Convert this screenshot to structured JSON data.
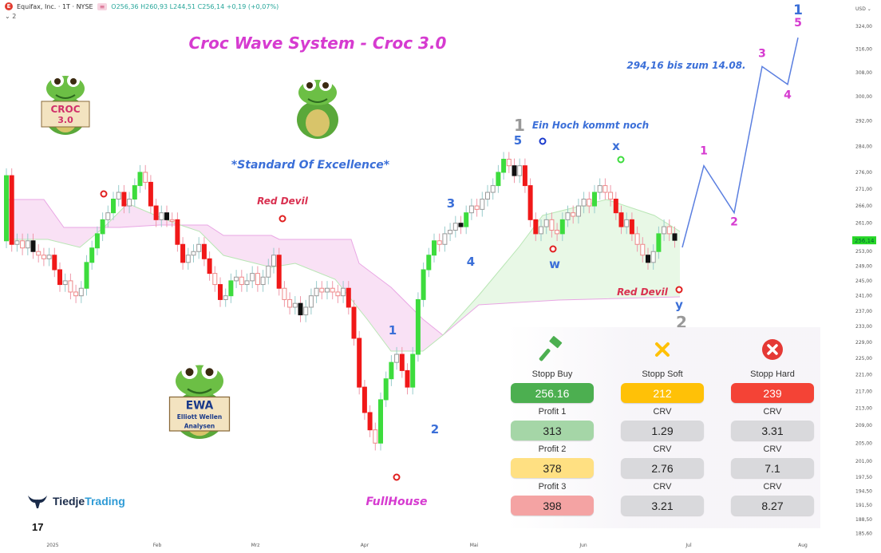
{
  "header": {
    "symbol_title": "Equifax, Inc. · 1T · NYSE",
    "symbol_logo_letter": "E",
    "ohlc_text": "O256,36 H260,93 L244,51 C256,14 +0,19 (+0,07%)",
    "indicator_count": "⌄ 2"
  },
  "currency": "USD ⌄",
  "chart_data": {
    "type": "candlestick",
    "scale": "log",
    "ylim": [
      185.6,
      326
    ],
    "y_tick_labels": [
      "324,00",
      "316,00",
      "308,00",
      "300,00",
      "292,00",
      "284,00",
      "276,00",
      "271,00",
      "266,00",
      "261,00",
      "253,00",
      "249,00",
      "245,00",
      "241,00",
      "237,00",
      "233,00",
      "229,00",
      "225,00",
      "221,00",
      "217,00",
      "213,00",
      "209,00",
      "205,00",
      "201,00",
      "197,50",
      "194,50",
      "191,50",
      "188,50",
      "185,60"
    ],
    "y_tick_values": [
      324,
      316,
      308,
      300,
      292,
      284,
      276,
      271,
      266,
      261,
      253,
      249,
      245,
      241,
      237,
      233,
      229,
      225,
      221,
      217,
      213,
      209,
      205,
      201,
      197.5,
      194.5,
      191.5,
      188.5,
      185.6
    ],
    "x_tick_labels": [
      "2025",
      "Feb",
      "Mrz",
      "Apr",
      "Mai",
      "Jun",
      "Jul",
      "Aug"
    ],
    "last_price": 256.14,
    "last_price_label": "256,14",
    "first_open": 256,
    "closes": [
      275,
      255,
      256,
      254,
      256,
      253,
      252,
      251,
      252,
      248,
      244,
      245,
      242,
      241,
      243,
      250,
      254,
      258,
      262,
      264,
      268,
      270,
      266,
      268,
      272,
      276,
      273,
      266,
      262,
      264,
      262,
      262,
      255,
      250,
      252,
      253,
      255,
      251,
      247,
      244,
      240,
      241,
      245,
      246,
      244,
      245,
      247,
      244,
      246,
      249,
      252,
      243,
      240,
      238,
      239,
      236,
      238,
      241,
      243,
      242,
      243,
      242,
      241,
      243,
      238,
      230,
      218,
      212,
      208,
      205,
      215,
      220,
      224,
      226,
      222,
      218,
      226,
      240,
      248,
      252,
      256,
      255,
      258,
      259,
      261,
      260,
      264,
      266,
      265,
      268,
      270,
      272,
      276,
      280,
      278,
      275,
      278,
      272,
      262,
      258,
      260,
      262,
      259,
      258,
      262,
      264,
      263,
      266,
      268,
      266,
      270,
      272,
      270,
      268,
      264,
      260,
      262,
      258,
      255,
      252,
      250,
      253,
      258,
      260,
      258,
      256.14
    ],
    "projection_wave": [
      {
        "label": "1",
        "price": 278
      },
      {
        "label": "2",
        "price": 264
      },
      {
        "label": "3",
        "price": 310
      },
      {
        "label": "4",
        "price": 304
      },
      {
        "label": "5",
        "price": 320
      }
    ],
    "wave_labels": [
      {
        "text": "1",
        "color": "#3b6fd8"
      },
      {
        "text": "2",
        "color": "#3b6fd8"
      },
      {
        "text": "3",
        "color": "#3b6fd8"
      },
      {
        "text": "4",
        "color": "#3b6fd8"
      },
      {
        "text": "5",
        "color": "#3b6fd8"
      },
      {
        "text": "1",
        "color": "#999999"
      },
      {
        "text": "w",
        "color": "#3b6fd8"
      },
      {
        "text": "x",
        "color": "#3b6fd8"
      },
      {
        "text": "y",
        "color": "#3b6fd8"
      },
      {
        "text": "2",
        "color": "#999999"
      },
      {
        "text": "1",
        "color": "#3b6fd8"
      }
    ],
    "annotations": {
      "title": "Croc Wave System - Croc 3.0",
      "subtitle": "*Standard Of Excellence*",
      "red_devil_1": "Red Devil",
      "red_devil_2": "Red Devil",
      "full_house": "FullHouse",
      "high_note": "Ein Hoch kommt noch",
      "target_note": "294,16 bis zum 14.08."
    },
    "colors": {
      "up": "#3ddc3d",
      "down": "#f01818",
      "neutral": "#111111",
      "cloud_bear": "#f7d9f2",
      "cloud_bull": "#e2f6e0",
      "wave_line": "#5b7fe0",
      "title": "#d63bd0",
      "price_badge": "#27d627"
    }
  },
  "stickers": {
    "croc_sign": "CROC 3.0",
    "ewa_title": "EWA",
    "ewa_sub1": "Elliott Wellen",
    "ewa_sub2": "Analysen"
  },
  "panel": {
    "columns": [
      {
        "icon": "gavel-icon",
        "head": "Stopp Buy",
        "head_value": "256.16",
        "head_color": "#4caf50",
        "rows": [
          {
            "label": "Profit 1",
            "value": "313",
            "color": "#a5d6a7"
          },
          {
            "label": "Profit 2",
            "value": "378",
            "color": "#ffe082"
          },
          {
            "label": "Profit 3",
            "value": "398",
            "color": "#f4a3a3"
          }
        ]
      },
      {
        "icon": "x-icon",
        "head": "Stopp Soft",
        "head_value": "212",
        "head_color": "#ffc107",
        "rows": [
          {
            "label": "CRV",
            "value": "1.29",
            "color": "#d9d9dc"
          },
          {
            "label": "CRV",
            "value": "2.76",
            "color": "#d9d9dc"
          },
          {
            "label": "CRV",
            "value": "3.21",
            "color": "#d9d9dc"
          }
        ]
      },
      {
        "icon": "x-circle-icon",
        "head": "Stopp Hard",
        "head_value": "239",
        "head_color": "#f44336",
        "rows": [
          {
            "label": "CRV",
            "value": "3.31",
            "color": "#d9d9dc"
          },
          {
            "label": "CRV",
            "value": "7.1",
            "color": "#d9d9dc"
          },
          {
            "label": "CRV",
            "value": "8.27",
            "color": "#d9d9dc"
          }
        ]
      }
    ]
  },
  "brand": {
    "part1": "Tiedje",
    "part2": "Trading",
    "tv_logo": "17"
  }
}
